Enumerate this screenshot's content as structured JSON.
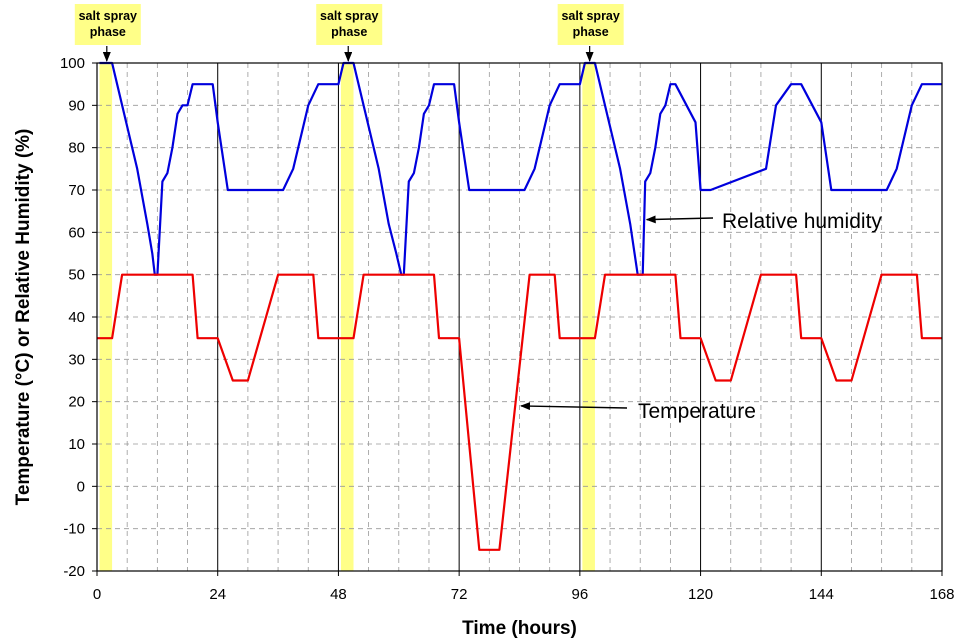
{
  "chart_data": {
    "type": "line",
    "title": "",
    "xlabel": "Time (hours)",
    "ylabel": "Temperature (°C) or Relative Humidity (%)",
    "xlim": [
      0,
      168
    ],
    "ylim": [
      -20,
      100
    ],
    "xticks": [
      0,
      24,
      48,
      72,
      96,
      120,
      144,
      168
    ],
    "yticks": [
      -20,
      -10,
      0,
      10,
      20,
      30,
      40,
      50,
      60,
      70,
      80,
      90,
      100
    ],
    "grid": true,
    "series": [
      {
        "name": "Relative humidity",
        "color": "#0000dd",
        "x": [
          0.5,
          3,
          8,
          10,
          11,
          11.5,
          12,
          13,
          14,
          15,
          16,
          17,
          18,
          19,
          23,
          24,
          26,
          37,
          39,
          42,
          44,
          48,
          49,
          51,
          56,
          58,
          59.5,
          60.5,
          61,
          62,
          63,
          64,
          65,
          66,
          67,
          71,
          72,
          74,
          85,
          87,
          90,
          92,
          96,
          97,
          99,
          104,
          106,
          107.5,
          108.5,
          109,
          110,
          111,
          112,
          113,
          114,
          115,
          119,
          120,
          122,
          133,
          135,
          138,
          140,
          144,
          146,
          157,
          159,
          162,
          164,
          168
        ],
        "y": [
          100,
          100,
          75,
          62,
          55,
          50,
          50,
          72,
          74,
          80,
          88,
          90,
          90,
          95,
          95,
          86,
          70,
          70,
          75,
          90,
          95,
          95,
          100,
          100,
          75,
          62,
          55,
          50,
          50,
          72,
          74,
          80,
          88,
          90,
          95,
          95,
          86,
          70,
          70,
          75,
          90,
          95,
          95,
          100,
          100,
          75,
          62,
          50,
          50,
          72,
          74,
          80,
          88,
          90,
          95,
          95,
          86,
          70,
          70,
          75,
          90,
          95,
          95,
          86,
          70,
          70,
          75,
          90,
          95,
          95
        ]
      },
      {
        "name": "Temperature",
        "color": "#ee0000",
        "x": [
          0,
          3,
          5,
          19,
          20,
          24,
          27,
          30,
          36,
          43,
          44,
          48,
          49,
          51,
          53,
          67,
          68,
          72,
          76,
          80,
          86,
          91,
          92,
          96,
          97,
          99,
          101,
          115,
          116,
          120,
          123,
          126,
          132,
          139,
          140,
          144,
          147,
          150,
          156,
          163,
          164,
          168
        ],
        "y": [
          35,
          35,
          50,
          50,
          35,
          35,
          25,
          25,
          50,
          50,
          35,
          35,
          35,
          35,
          50,
          50,
          35,
          35,
          -15,
          -15,
          50,
          50,
          35,
          35,
          35,
          35,
          50,
          50,
          35,
          35,
          25,
          25,
          50,
          50,
          35,
          35,
          25,
          25,
          50,
          50,
          35,
          35
        ]
      }
    ],
    "highlight_bands": [
      {
        "label": "salt spray phase",
        "x": [
          0.5,
          3
        ]
      },
      {
        "label": "salt spray phase",
        "x": [
          48.5,
          51
        ]
      },
      {
        "label": "salt spray phase",
        "x": [
          96.5,
          99
        ]
      }
    ],
    "annotations": [
      {
        "text": "Relative humidity",
        "points_to": [
          108.5,
          63
        ]
      },
      {
        "text": "Temperature",
        "points_to": [
          83.5,
          19
        ]
      }
    ],
    "band_color": "#ffff88"
  }
}
